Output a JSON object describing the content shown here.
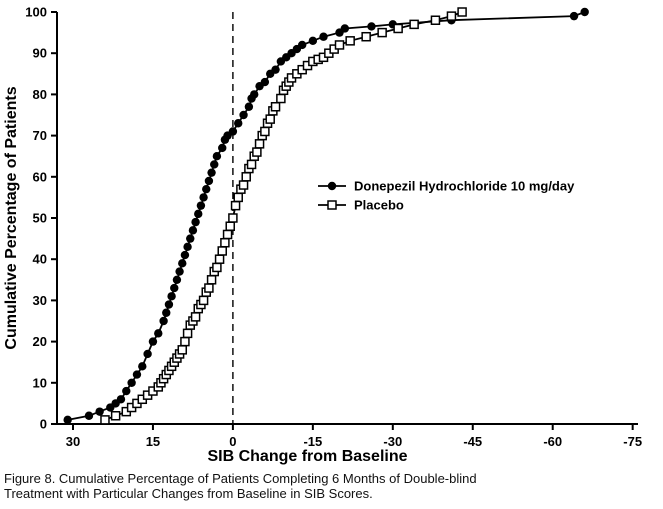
{
  "chart_data": {
    "type": "line",
    "title": "",
    "xlabel": "SIB Change from Baseline",
    "ylabel": "Cumulative Percentage of Patients",
    "xlim": [
      33,
      -76
    ],
    "ylim": [
      0,
      100
    ],
    "x_axis_reversed": true,
    "x_ticks": [
      30,
      15,
      0,
      -15,
      -30,
      -45,
      -60,
      -75
    ],
    "y_ticks": [
      0,
      10,
      20,
      30,
      40,
      50,
      60,
      70,
      80,
      90,
      100
    ],
    "grid": false,
    "reference_line_x": 0,
    "legend_position": "inside-middle-right",
    "series": [
      {
        "name": "Donepezil Hydrochloride 10 mg/day",
        "marker": "filled-circle",
        "color": "#000000",
        "points": [
          [
            31,
            1
          ],
          [
            27,
            2
          ],
          [
            25,
            3
          ],
          [
            23,
            4
          ],
          [
            22,
            5
          ],
          [
            21,
            6
          ],
          [
            20,
            8
          ],
          [
            19,
            10
          ],
          [
            18,
            12
          ],
          [
            17,
            14
          ],
          [
            16,
            17
          ],
          [
            15,
            20
          ],
          [
            14,
            22
          ],
          [
            13,
            25
          ],
          [
            12.5,
            27
          ],
          [
            12,
            29
          ],
          [
            11.5,
            31
          ],
          [
            11,
            33
          ],
          [
            10.5,
            35
          ],
          [
            10,
            37
          ],
          [
            9.5,
            39
          ],
          [
            9,
            41
          ],
          [
            8.5,
            43
          ],
          [
            8,
            45
          ],
          [
            7.5,
            47
          ],
          [
            7,
            49
          ],
          [
            6.5,
            51
          ],
          [
            6,
            53
          ],
          [
            5.5,
            55
          ],
          [
            5,
            57
          ],
          [
            4.5,
            59
          ],
          [
            4,
            61
          ],
          [
            3.5,
            63
          ],
          [
            3,
            65
          ],
          [
            2,
            67
          ],
          [
            1.5,
            69
          ],
          [
            1,
            70
          ],
          [
            0,
            71
          ],
          [
            -1,
            73
          ],
          [
            -2,
            75
          ],
          [
            -3,
            77
          ],
          [
            -3.5,
            79
          ],
          [
            -4,
            80
          ],
          [
            -5,
            82
          ],
          [
            -6,
            83
          ],
          [
            -7,
            85
          ],
          [
            -8,
            86
          ],
          [
            -9,
            88
          ],
          [
            -10,
            89
          ],
          [
            -11,
            90
          ],
          [
            -12,
            91
          ],
          [
            -13,
            92
          ],
          [
            -15,
            93
          ],
          [
            -17,
            94
          ],
          [
            -20,
            95
          ],
          [
            -21,
            96
          ],
          [
            -26,
            96.5
          ],
          [
            -30,
            97
          ],
          [
            -41,
            98
          ],
          [
            -64,
            99
          ],
          [
            -66,
            100
          ]
        ]
      },
      {
        "name": "Placebo",
        "marker": "open-square",
        "color": "#000000",
        "points": [
          [
            24,
            1
          ],
          [
            22,
            2
          ],
          [
            20,
            3
          ],
          [
            19,
            4
          ],
          [
            18,
            5
          ],
          [
            17,
            6
          ],
          [
            16,
            7
          ],
          [
            15,
            8
          ],
          [
            14,
            9
          ],
          [
            13.5,
            10
          ],
          [
            13,
            11
          ],
          [
            12.5,
            12
          ],
          [
            12,
            13
          ],
          [
            11.5,
            14
          ],
          [
            11,
            15
          ],
          [
            10.5,
            16
          ],
          [
            10,
            17
          ],
          [
            9.5,
            18
          ],
          [
            9,
            20
          ],
          [
            8.5,
            22
          ],
          [
            8,
            24
          ],
          [
            7.5,
            25
          ],
          [
            7,
            26
          ],
          [
            6.5,
            28
          ],
          [
            6,
            29
          ],
          [
            5.5,
            30
          ],
          [
            5,
            32
          ],
          [
            4.5,
            33
          ],
          [
            4,
            35
          ],
          [
            3.5,
            37
          ],
          [
            3,
            38
          ],
          [
            2.5,
            40
          ],
          [
            2,
            42
          ],
          [
            1.5,
            44
          ],
          [
            1,
            46
          ],
          [
            0.5,
            48
          ],
          [
            0,
            50
          ],
          [
            -0.5,
            53
          ],
          [
            -1,
            55
          ],
          [
            -1.5,
            57
          ],
          [
            -2,
            58
          ],
          [
            -2.5,
            60
          ],
          [
            -3,
            62
          ],
          [
            -3.5,
            63
          ],
          [
            -4,
            65
          ],
          [
            -4.5,
            66
          ],
          [
            -5,
            68
          ],
          [
            -5.5,
            70
          ],
          [
            -6,
            71
          ],
          [
            -6.5,
            73
          ],
          [
            -7,
            74
          ],
          [
            -7.5,
            76
          ],
          [
            -8,
            77
          ],
          [
            -9,
            79
          ],
          [
            -9.5,
            81
          ],
          [
            -10,
            82
          ],
          [
            -10.5,
            83
          ],
          [
            -11,
            84
          ],
          [
            -12,
            85
          ],
          [
            -13,
            86
          ],
          [
            -14,
            87
          ],
          [
            -15,
            88
          ],
          [
            -16,
            88.5
          ],
          [
            -17,
            89
          ],
          [
            -18,
            90
          ],
          [
            -19,
            91
          ],
          [
            -20,
            92
          ],
          [
            -22,
            93
          ],
          [
            -25,
            94
          ],
          [
            -28,
            95
          ],
          [
            -31,
            96
          ],
          [
            -34,
            97
          ],
          [
            -38,
            98
          ],
          [
            -41,
            99
          ],
          [
            -43,
            100
          ]
        ]
      }
    ]
  },
  "caption": {
    "line1": "Figure 8. Cumulative Percentage of Patients Completing 6 Months of Double-blind",
    "line2": "Treatment with Particular Changes from Baseline in SIB Scores."
  }
}
